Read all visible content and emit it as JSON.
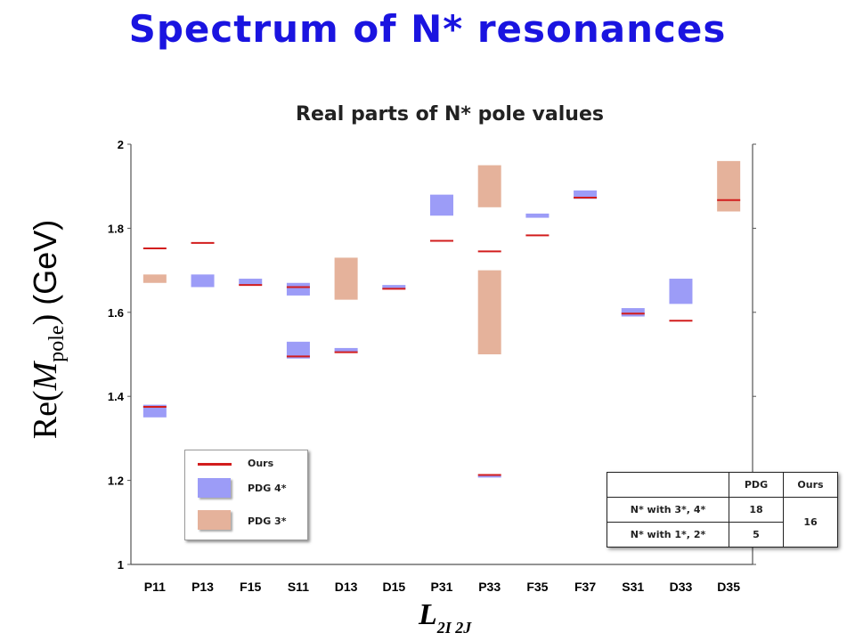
{
  "page": {
    "title": "Spectrum of N* resonances",
    "ylabel": {
      "re": "Re(",
      "m": "M",
      "sub": "pole",
      "close": ")",
      "unit": " (GeV)"
    },
    "xlabel": {
      "main": "L",
      "sub": "2I 2J"
    }
  },
  "legend": {
    "ours": "Ours",
    "pdg4": "PDG 4*",
    "pdg3": "PDG 3*"
  },
  "table": {
    "header": [
      "",
      "PDG",
      "Ours"
    ],
    "rows": [
      {
        "label": "N* with 3*, 4*",
        "pdg": "18"
      },
      {
        "label": "N* with 1*, 2*",
        "pdg": "5"
      }
    ],
    "ours_total": "16"
  },
  "colors": {
    "ours": "#d21d1d",
    "pdg4": "#9c9cf7",
    "pdg3": "#e5b29b",
    "title": "#1a14e0"
  },
  "chart_data": {
    "type": "bar",
    "title": "Real parts of N* pole values",
    "xlabel": "L 2I 2J",
    "ylabel": "Re(M pole) (GeV)",
    "ylim": [
      1,
      2
    ],
    "yticks": [
      1,
      1.2,
      1.4,
      1.6,
      1.8,
      2
    ],
    "ytick_labels": [
      "1",
      "1.2",
      "1.4",
      "1.6",
      "1.8",
      "2"
    ],
    "categories": [
      "P11",
      "P13",
      "F15",
      "S11",
      "D13",
      "D15",
      "P31",
      "P33",
      "F35",
      "F37",
      "S31",
      "D33",
      "D35"
    ],
    "pdg4_ranges": [
      {
        "category": "P11",
        "low": 1.35,
        "high": 1.38
      },
      {
        "category": "P13",
        "low": 1.66,
        "high": 1.69
      },
      {
        "category": "F15",
        "low": 1.665,
        "high": 1.68
      },
      {
        "category": "S11",
        "low": 1.64,
        "high": 1.67
      },
      {
        "category": "S11",
        "low": 1.49,
        "high": 1.53
      },
      {
        "category": "D13",
        "low": 1.505,
        "high": 1.515
      },
      {
        "category": "D15",
        "low": 1.655,
        "high": 1.665
      },
      {
        "category": "P31",
        "low": 1.83,
        "high": 1.88
      },
      {
        "category": "P33",
        "low": 1.209,
        "high": 1.211
      },
      {
        "category": "F35",
        "low": 1.825,
        "high": 1.835
      },
      {
        "category": "F37",
        "low": 1.87,
        "high": 1.89
      },
      {
        "category": "S31",
        "low": 1.59,
        "high": 1.61
      },
      {
        "category": "D33",
        "low": 1.62,
        "high": 1.68
      }
    ],
    "pdg3_ranges": [
      {
        "category": "P11",
        "low": 1.67,
        "high": 1.69
      },
      {
        "category": "D13",
        "low": 1.63,
        "high": 1.73
      },
      {
        "category": "P33",
        "low": 1.85,
        "high": 1.95
      },
      {
        "category": "P33",
        "low": 1.5,
        "high": 1.7
      },
      {
        "category": "D35",
        "low": 1.84,
        "high": 1.96
      }
    ],
    "ours": [
      {
        "category": "P11",
        "value": 1.752
      },
      {
        "category": "P11",
        "value": 1.375
      },
      {
        "category": "P13",
        "value": 1.765
      },
      {
        "category": "F15",
        "value": 1.665
      },
      {
        "category": "S11",
        "value": 1.66
      },
      {
        "category": "S11",
        "value": 1.495
      },
      {
        "category": "D13",
        "value": 1.505
      },
      {
        "category": "D15",
        "value": 1.656
      },
      {
        "category": "P31",
        "value": 1.77
      },
      {
        "category": "P33",
        "value": 1.745
      },
      {
        "category": "P33",
        "value": 1.213
      },
      {
        "category": "F35",
        "value": 1.783
      },
      {
        "category": "F37",
        "value": 1.873
      },
      {
        "category": "S31",
        "value": 1.597
      },
      {
        "category": "D33",
        "value": 1.58
      },
      {
        "category": "D35",
        "value": 1.867
      }
    ]
  }
}
